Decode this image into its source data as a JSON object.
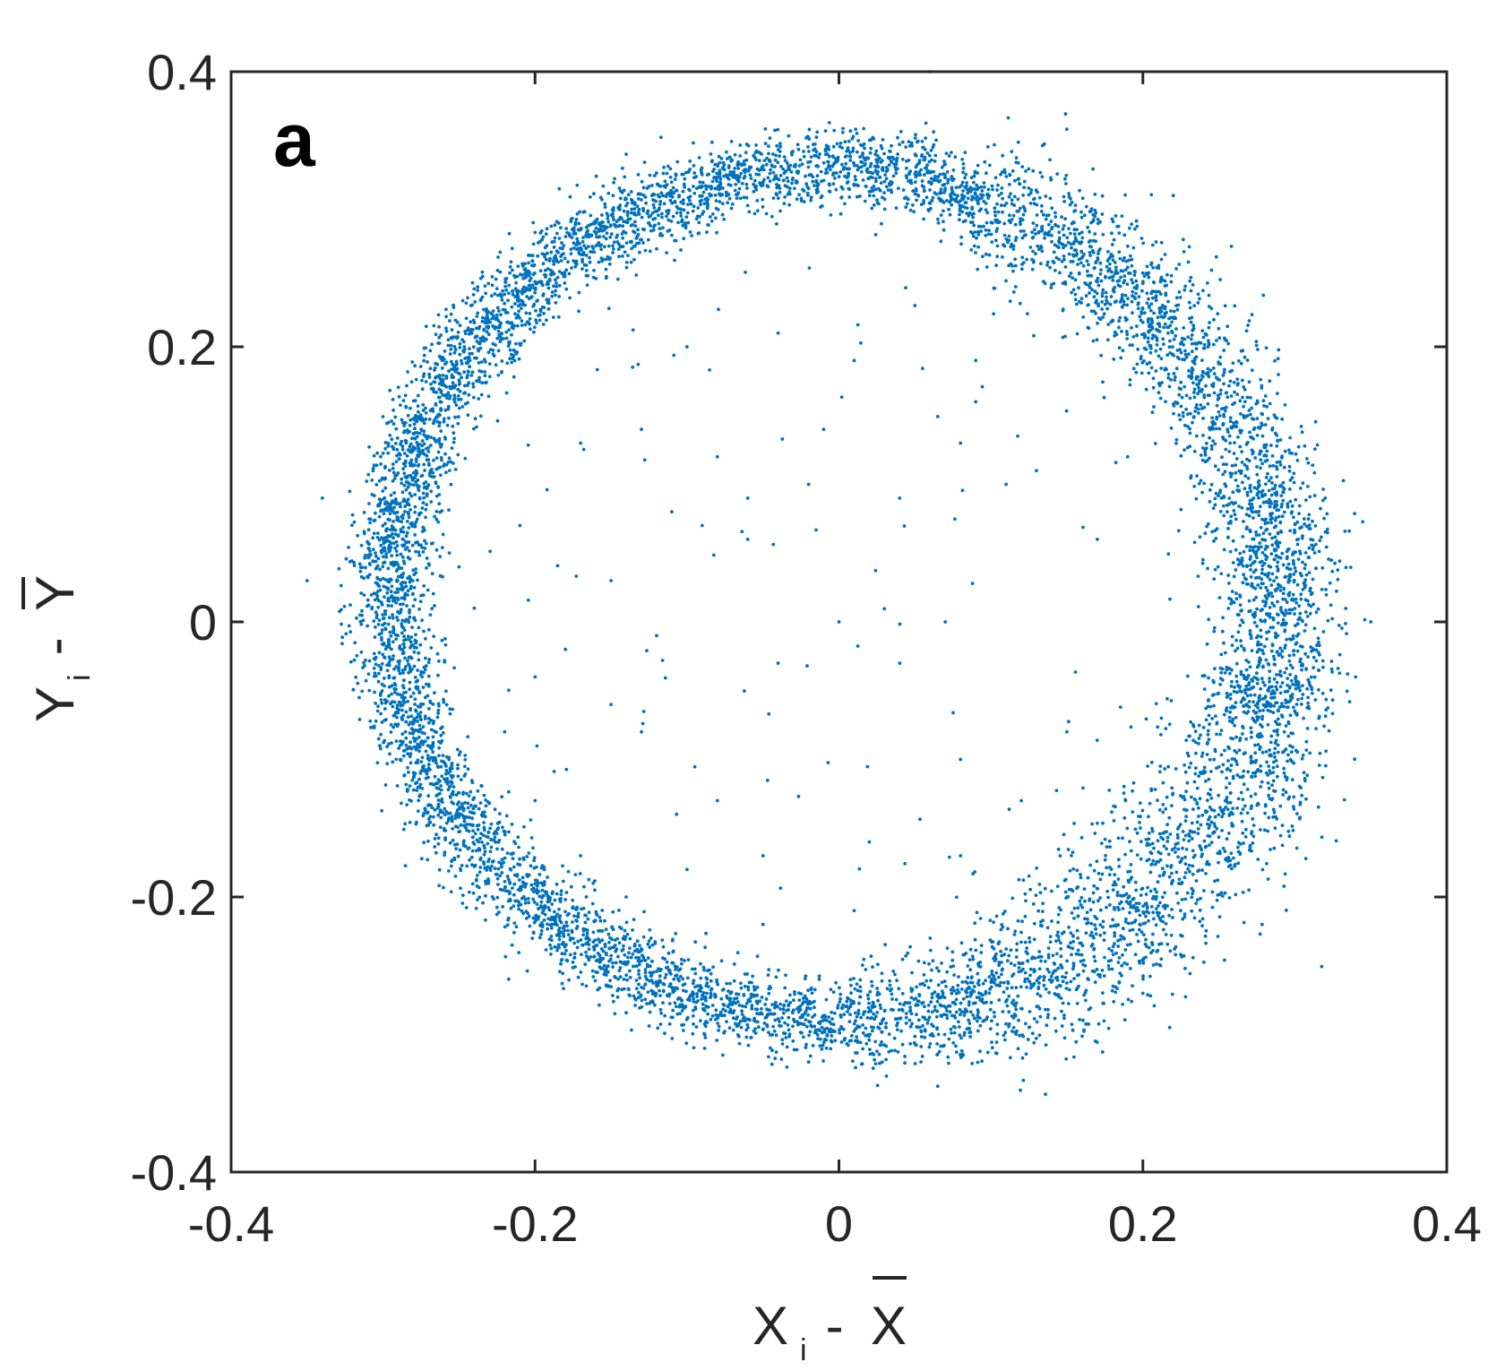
{
  "chart_data": {
    "type": "scatter",
    "panel_label": "a",
    "xlabel": {
      "main": "X",
      "sub": "i",
      "rest": " - ",
      "bar": "X"
    },
    "ylabel": {
      "main": "Y",
      "sub": "i",
      "rest": " - ",
      "bar": "Y"
    },
    "xlim": [
      -0.4,
      0.4
    ],
    "ylim": [
      -0.4,
      0.4
    ],
    "xticks": [
      "-0.4",
      "-0.2",
      "0",
      "0.2",
      "0.4"
    ],
    "yticks": [
      "0.4",
      "0.2",
      "0",
      "-0.2",
      "-0.4"
    ],
    "xtick_values": [
      -0.4,
      -0.2,
      0,
      0.2,
      0.4
    ],
    "ytick_values": [
      0.4,
      0.2,
      0,
      -0.2,
      -0.4
    ],
    "grid": false,
    "marker_color": "#0072BD",
    "series": [
      {
        "description": "dense ring of points, approx. elliptical annulus",
        "ring": {
          "center": [
            0.005,
            0.02
          ],
          "radius_x_left": 0.3,
          "radius_x_right": 0.285,
          "radius_y_top": 0.31,
          "radius_y_bottom": 0.31,
          "band_width": 0.035,
          "approx_points": 9000
        },
        "interior_points": [
          [
            -0.1,
            0.2
          ],
          [
            -0.04,
            0.21
          ],
          [
            0.01,
            0.19
          ],
          [
            0.09,
            0.19
          ],
          [
            0.05,
            0.23
          ],
          [
            -0.13,
            0.14
          ],
          [
            -0.08,
            0.12
          ],
          [
            -0.01,
            0.14
          ],
          [
            0.08,
            0.13
          ],
          [
            0.13,
            0.11
          ],
          [
            -0.17,
            0.13
          ],
          [
            -0.11,
            0.08
          ],
          [
            -0.06,
            0.09
          ],
          [
            0.04,
            0.09
          ],
          [
            0.11,
            0.1
          ],
          [
            -0.21,
            0.07
          ],
          [
            -0.15,
            0.03
          ],
          [
            -0.09,
            0.07
          ],
          [
            -0.02,
            0.1
          ],
          [
            0.17,
            0.06
          ],
          [
            -0.24,
            0.01
          ],
          [
            -0.18,
            -0.02
          ],
          [
            -0.12,
            -0.01
          ],
          [
            0.0,
            0.0
          ],
          [
            0.07,
            0.0
          ],
          [
            -0.22,
            -0.08
          ],
          [
            -0.15,
            -0.06
          ],
          [
            -0.04,
            -0.03
          ],
          [
            0.04,
            -0.03
          ],
          [
            0.15,
            -0.08
          ],
          [
            -0.2,
            -0.13
          ],
          [
            -0.13,
            -0.08
          ],
          [
            -0.08,
            -0.13
          ],
          [
            0.08,
            -0.1
          ],
          [
            0.12,
            -0.13
          ],
          [
            -0.17,
            -0.17
          ],
          [
            -0.1,
            -0.18
          ],
          [
            -0.05,
            -0.17
          ],
          [
            0.02,
            -0.16
          ],
          [
            0.08,
            -0.17
          ],
          [
            -0.14,
            -0.2
          ],
          [
            -0.05,
            -0.22
          ],
          [
            0.01,
            -0.21
          ],
          [
            0.06,
            -0.23
          ],
          [
            0.15,
            -0.2
          ],
          [
            -0.25,
            0.04
          ],
          [
            -0.06,
            0.06
          ],
          [
            0.09,
            0.16
          ],
          [
            0.19,
            0.12
          ],
          [
            -0.2,
            -0.04
          ]
        ],
        "outlier_points": [
          [
            -0.35,
            0.03
          ],
          [
            -0.34,
            0.09
          ],
          [
            0.32,
            0.09
          ],
          [
            0.35,
            0.0
          ],
          [
            0.34,
            -0.04
          ],
          [
            -0.14,
            0.34
          ],
          [
            0.06,
            0.4
          ],
          [
            0.22,
            0.31
          ],
          [
            -0.02,
            -0.32
          ],
          [
            0.2,
            -0.27
          ]
        ]
      }
    ]
  }
}
